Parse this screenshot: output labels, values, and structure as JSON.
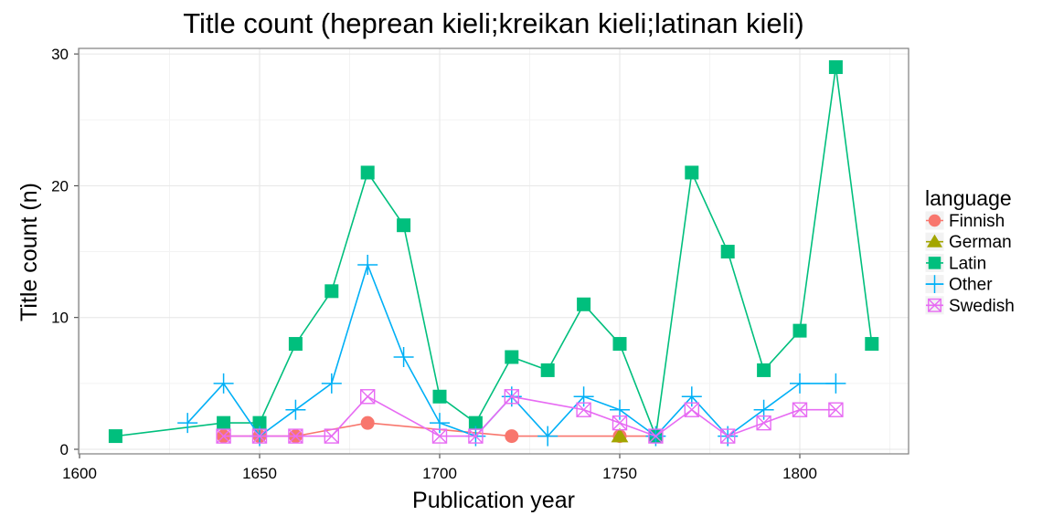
{
  "chart_data": {
    "type": "line",
    "title": "Title count (heprean kieli;kreikan kieli;latinan kieli)",
    "xlabel": "Publication year",
    "ylabel": "Title count (n)",
    "xlim": [
      1600,
      1830
    ],
    "ylim": [
      0,
      30
    ],
    "x_ticks": [
      1600,
      1650,
      1700,
      1750,
      1800
    ],
    "y_ticks": [
      0,
      10,
      20,
      30
    ],
    "grid": true,
    "legend_title": "language",
    "legend_position": "right",
    "series": [
      {
        "name": "Finnish",
        "color": "#F8766D",
        "marker": "circle",
        "points": [
          [
            1640,
            1
          ],
          [
            1650,
            1
          ],
          [
            1660,
            1
          ],
          [
            1680,
            2
          ],
          [
            1720,
            1
          ],
          [
            1750,
            1
          ],
          [
            1760,
            1
          ]
        ]
      },
      {
        "name": "German",
        "color": "#A3A500",
        "marker": "triangle",
        "points": [
          [
            1750,
            1
          ]
        ]
      },
      {
        "name": "Latin",
        "color": "#00BF7D",
        "marker": "square",
        "points": [
          [
            1610,
            1
          ],
          [
            1640,
            2
          ],
          [
            1650,
            2
          ],
          [
            1660,
            8
          ],
          [
            1670,
            12
          ],
          [
            1680,
            21
          ],
          [
            1690,
            17
          ],
          [
            1700,
            4
          ],
          [
            1710,
            2
          ],
          [
            1720,
            7
          ],
          [
            1730,
            6
          ],
          [
            1740,
            11
          ],
          [
            1750,
            8
          ],
          [
            1760,
            1
          ],
          [
            1770,
            21
          ],
          [
            1780,
            15
          ],
          [
            1790,
            6
          ],
          [
            1800,
            9
          ],
          [
            1810,
            29
          ],
          [
            1820,
            8
          ]
        ]
      },
      {
        "name": "Other",
        "color": "#00B0F6",
        "marker": "plus",
        "points": [
          [
            1630,
            2
          ],
          [
            1640,
            5
          ],
          [
            1650,
            1
          ],
          [
            1660,
            3
          ],
          [
            1670,
            5
          ],
          [
            1680,
            14
          ],
          [
            1690,
            7
          ],
          [
            1700,
            2
          ],
          [
            1710,
            1
          ],
          [
            1720,
            4
          ],
          [
            1730,
            1
          ],
          [
            1740,
            4
          ],
          [
            1750,
            3
          ],
          [
            1760,
            1
          ],
          [
            1770,
            4
          ],
          [
            1780,
            1
          ],
          [
            1790,
            3
          ],
          [
            1800,
            5
          ],
          [
            1810,
            5
          ]
        ]
      },
      {
        "name": "Swedish",
        "color": "#E76BF3",
        "marker": "boxx",
        "points": [
          [
            1640,
            1
          ],
          [
            1650,
            1
          ],
          [
            1660,
            1
          ],
          [
            1670,
            1
          ],
          [
            1680,
            4
          ],
          [
            1700,
            1
          ],
          [
            1710,
            1
          ],
          [
            1720,
            4
          ],
          [
            1740,
            3
          ],
          [
            1750,
            2
          ],
          [
            1760,
            1
          ],
          [
            1770,
            3
          ],
          [
            1780,
            1
          ],
          [
            1790,
            2
          ],
          [
            1800,
            3
          ],
          [
            1810,
            3
          ]
        ]
      }
    ]
  }
}
